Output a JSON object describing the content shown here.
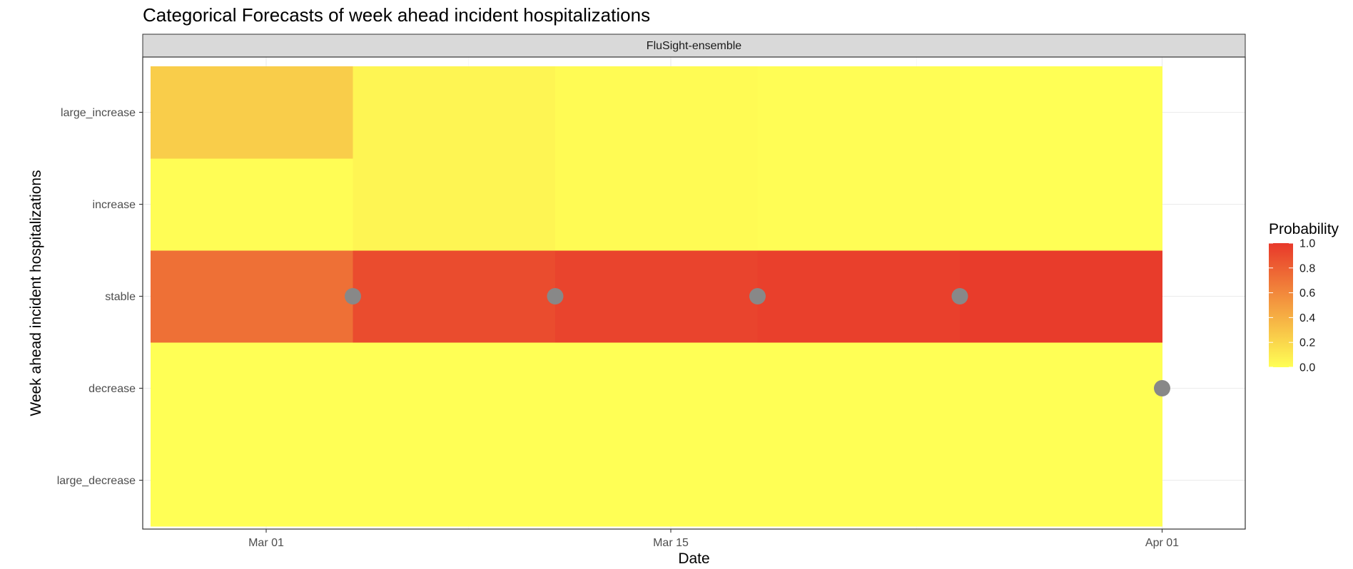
{
  "chart_data": {
    "type": "heatmap",
    "title": "Categorical Forecasts of week ahead incident hospitalizations",
    "facet": "FluSight-ensemble",
    "xlabel": "Date",
    "ylabel": "Week ahead incident hospitalizations",
    "x_tick_labels": [
      {
        "date": "2023-03-01",
        "label": "Mar 01"
      },
      {
        "date": "2023-03-15",
        "label": "Mar 15"
      },
      {
        "date": "2023-04-01",
        "label": "Apr 01"
      }
    ],
    "categories": [
      "large_decrease",
      "decrease",
      "stable",
      "increase",
      "large_increase"
    ],
    "weeks": [
      {
        "start": "2023-02-25",
        "end": "2023-03-04"
      },
      {
        "start": "2023-03-04",
        "end": "2023-03-11"
      },
      {
        "start": "2023-03-11",
        "end": "2023-03-18"
      },
      {
        "start": "2023-03-18",
        "end": "2023-03-25"
      },
      {
        "start": "2023-03-25",
        "end": "2023-04-01"
      }
    ],
    "probabilities": {
      "large_decrease": [
        0.0,
        0.0,
        0.0,
        0.0,
        0.0
      ],
      "decrease": [
        0.0,
        0.0,
        0.0,
        0.0,
        0.0
      ],
      "stable": [
        0.72,
        0.9,
        0.94,
        0.96,
        0.98
      ],
      "increase": [
        0.01,
        0.05,
        0.02,
        0.01,
        0.0
      ],
      "large_increase": [
        0.25,
        0.05,
        0.02,
        0.01,
        0.0
      ]
    },
    "observed": [
      {
        "date": "2023-03-04",
        "category": "stable"
      },
      {
        "date": "2023-03-11",
        "category": "stable"
      },
      {
        "date": "2023-03-18",
        "category": "stable"
      },
      {
        "date": "2023-03-25",
        "category": "stable"
      },
      {
        "date": "2023-04-01",
        "category": "decrease"
      }
    ],
    "legend": {
      "title": "Probability",
      "ticks": [
        "1.0",
        "0.8",
        "0.6",
        "0.4",
        "0.2",
        "0.0"
      ],
      "tick_values": [
        1.0,
        0.8,
        0.6,
        0.4,
        0.2,
        0.0
      ],
      "color_low": "#FFFF55",
      "color_high": "#E8382A",
      "position": "right"
    },
    "point_color": "#888888",
    "grid": true
  }
}
